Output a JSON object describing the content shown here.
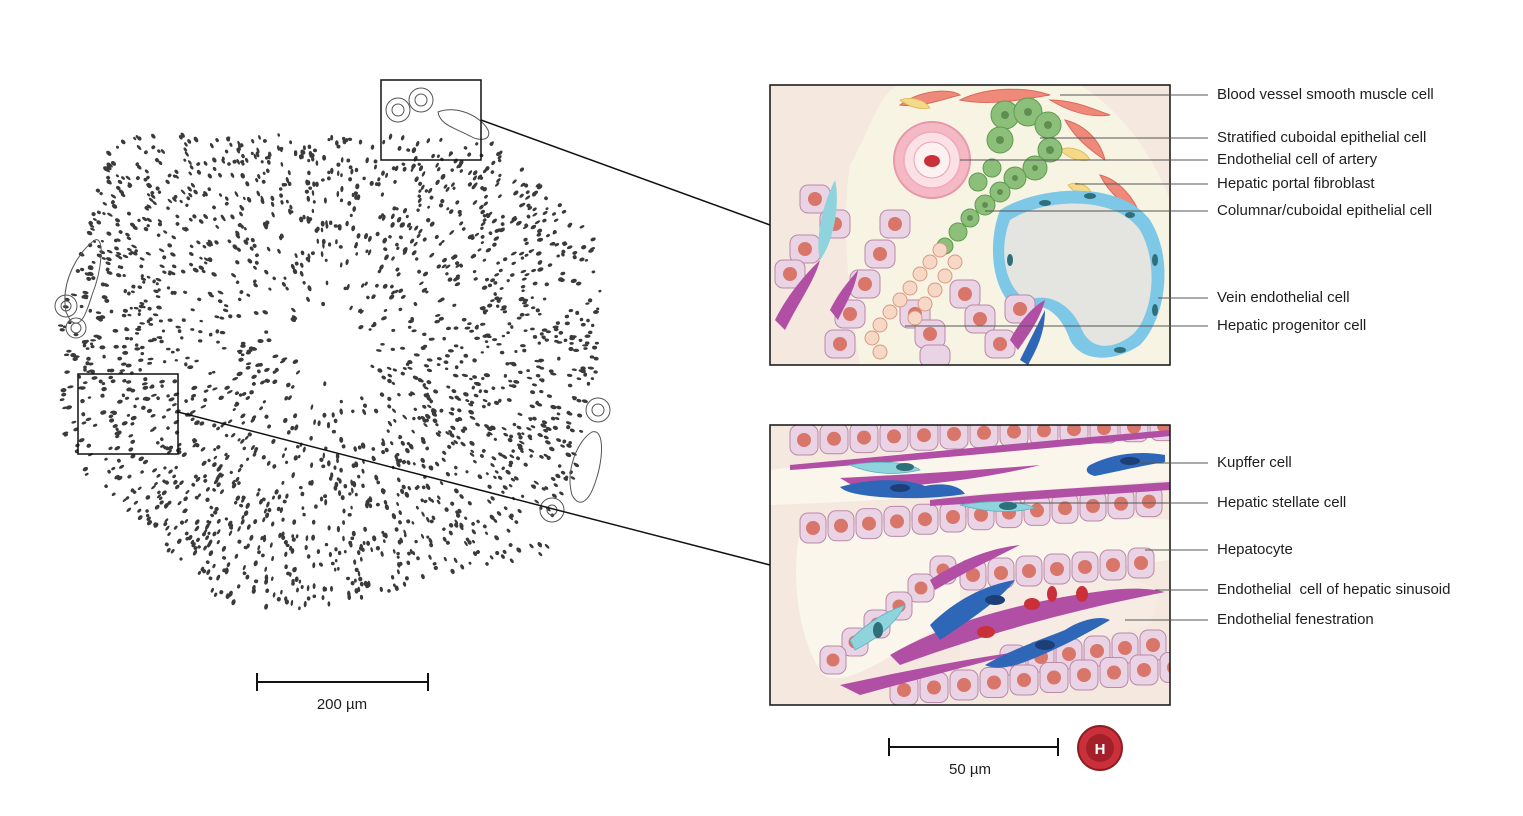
{
  "labels_top": [
    "Blood vessel smooth muscle cell",
    "Stratified cuboidal epithelial cell",
    "Endothelial cell of artery",
    "Hepatic portal fibroblast",
    "Columnar/cuboidal epithelial cell",
    "Vein endothelial cell",
    "Hepatic progenitor cell"
  ],
  "labels_bottom": [
    "Kupffer cell",
    "Hepatic stellate cell",
    "Hepatocyte",
    "Endothelial  cell of hepatic sinusoid",
    "Endothelial fenestration"
  ],
  "scale_left": "200 µm",
  "scale_right": "50 µm",
  "logo_letter": "H",
  "colors": {
    "hepatocyte": "#ead3e4",
    "nucleus": "#d9766a",
    "endothelium": "#b04fa3",
    "kupffer": "#2f67b8",
    "stellate": "#8fd3dd",
    "vein": "#7cc8e6",
    "epithelium_green": "#8cc07a",
    "smooth_muscle": "#ef8a7a",
    "rbc": "#c9303a",
    "background_tissue": "#f2e7df",
    "lobule_dots": "#3a3a3a"
  }
}
